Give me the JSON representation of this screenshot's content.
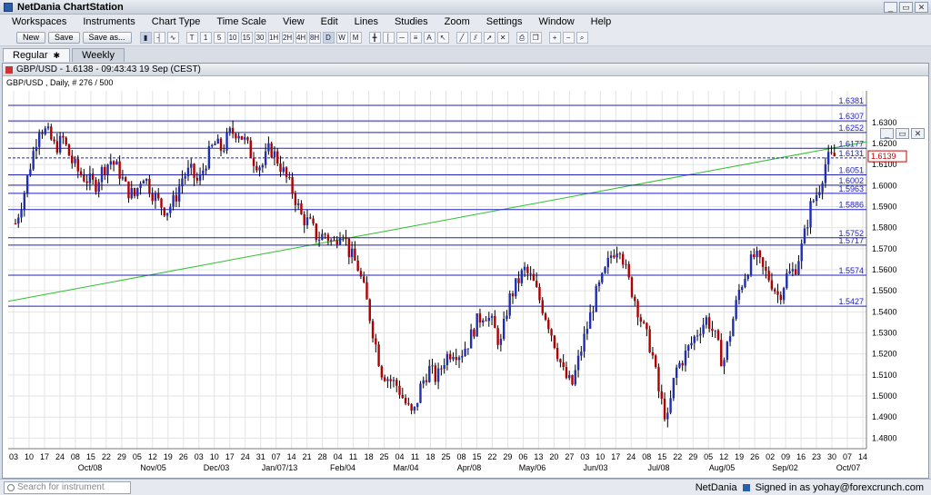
{
  "app": {
    "title": "NetDania ChartStation"
  },
  "menu": [
    "Workspaces",
    "Instruments",
    "Chart Type",
    "Time Scale",
    "View",
    "Edit",
    "Lines",
    "Studies",
    "Zoom",
    "Settings",
    "Window",
    "Help"
  ],
  "toolbar": {
    "buttons": [
      "New",
      "Save",
      "Save as..."
    ],
    "periods": [
      "T",
      "1",
      "5",
      "10",
      "15",
      "30",
      "1H",
      "2H",
      "4H",
      "8H",
      "D",
      "W",
      "M"
    ]
  },
  "tabs": [
    {
      "label": "Regular"
    },
    {
      "label": "Weekly"
    }
  ],
  "chart_window": {
    "title": "GBP/USD - 1.6138 - 09:43:43  19 Sep (CEST)"
  },
  "chart_data": {
    "type": "candlestick",
    "instrument": "GBP/USD",
    "subtitle": "GBP/USD , Daily, # 276 / 500",
    "price_label": "1.6139",
    "ylim": [
      1.475,
      1.645
    ],
    "y_ticks": [
      "1.6300",
      "1.6200",
      "1.6100",
      "1.6000",
      "1.5900",
      "1.5800",
      "1.5700",
      "1.5600",
      "1.5500",
      "1.5400",
      "1.5300",
      "1.5200",
      "1.5100",
      "1.5000",
      "1.4900",
      "1.4800"
    ],
    "horizontal_levels": [
      "1.6381",
      "1.6307",
      "1.6252",
      "1.6177",
      "1.6131",
      "1.6051",
      "1.6002",
      "1.5963",
      "1.5886",
      "1.5752",
      "1.5717",
      "1.5574",
      "1.5427"
    ],
    "x_day_labels": [
      "03",
      "10",
      "17",
      "24",
      "08",
      "15",
      "22",
      "29",
      "05",
      "12",
      "19",
      "26",
      "03",
      "10",
      "17",
      "24",
      "31",
      "07",
      "14",
      "21",
      "28",
      "04",
      "11",
      "18",
      "25",
      "04",
      "11",
      "18",
      "25",
      "08",
      "15",
      "22",
      "29",
      "06",
      "13",
      "20",
      "27",
      "03",
      "10",
      "17",
      "24",
      "08",
      "15",
      "22",
      "29",
      "05",
      "12",
      "19",
      "26",
      "02",
      "09",
      "16",
      "23",
      "30",
      "07",
      "14"
    ],
    "x_month_labels": [
      "Oct/08",
      "Nov/05",
      "Dec/03",
      "Jan/07/13",
      "Feb/04",
      "Mar/04",
      "Apr/08",
      "May/06",
      "Jun/03",
      "Jul/08",
      "Aug/05",
      "Sep/02",
      "Oct/07"
    ],
    "close_path": [
      1.582,
      1.595,
      1.612,
      1.628,
      1.625,
      1.618,
      1.622,
      1.612,
      1.606,
      1.603,
      1.6,
      1.608,
      1.612,
      1.607,
      1.598,
      1.595,
      1.606,
      1.598,
      1.592,
      1.588,
      1.593,
      1.604,
      1.607,
      1.601,
      1.612,
      1.62,
      1.617,
      1.625,
      1.626,
      1.62,
      1.612,
      1.609,
      1.618,
      1.612,
      1.604,
      1.596,
      1.585,
      1.582,
      1.575,
      1.577,
      1.572,
      1.581,
      1.568,
      1.562,
      1.548,
      1.53,
      1.512,
      1.508,
      1.505,
      1.497,
      1.49,
      1.505,
      1.513,
      1.508,
      1.518,
      1.522,
      1.52,
      1.526,
      1.535,
      1.54,
      1.534,
      1.524,
      1.545,
      1.553,
      1.56,
      1.555,
      1.545,
      1.535,
      1.523,
      1.51,
      1.505,
      1.52,
      1.534,
      1.548,
      1.557,
      1.568,
      1.572,
      1.556,
      1.545,
      1.532,
      1.522,
      1.5,
      1.488,
      1.512,
      1.518,
      1.525,
      1.532,
      1.537,
      1.528,
      1.515,
      1.532,
      1.55,
      1.56,
      1.567,
      1.56,
      1.555,
      1.547,
      1.557,
      1.56,
      1.572,
      1.59,
      1.598,
      1.612,
      1.6138
    ],
    "colors": {
      "bull": "#1f2fb0",
      "bear": "#b00000",
      "level": "#2020c0",
      "trend": "#2ec02e"
    }
  },
  "status": {
    "search_placeholder": "Search for instrument",
    "brand": "NetDania",
    "signin": "Signed in as yohay@forexcrunch.com"
  }
}
